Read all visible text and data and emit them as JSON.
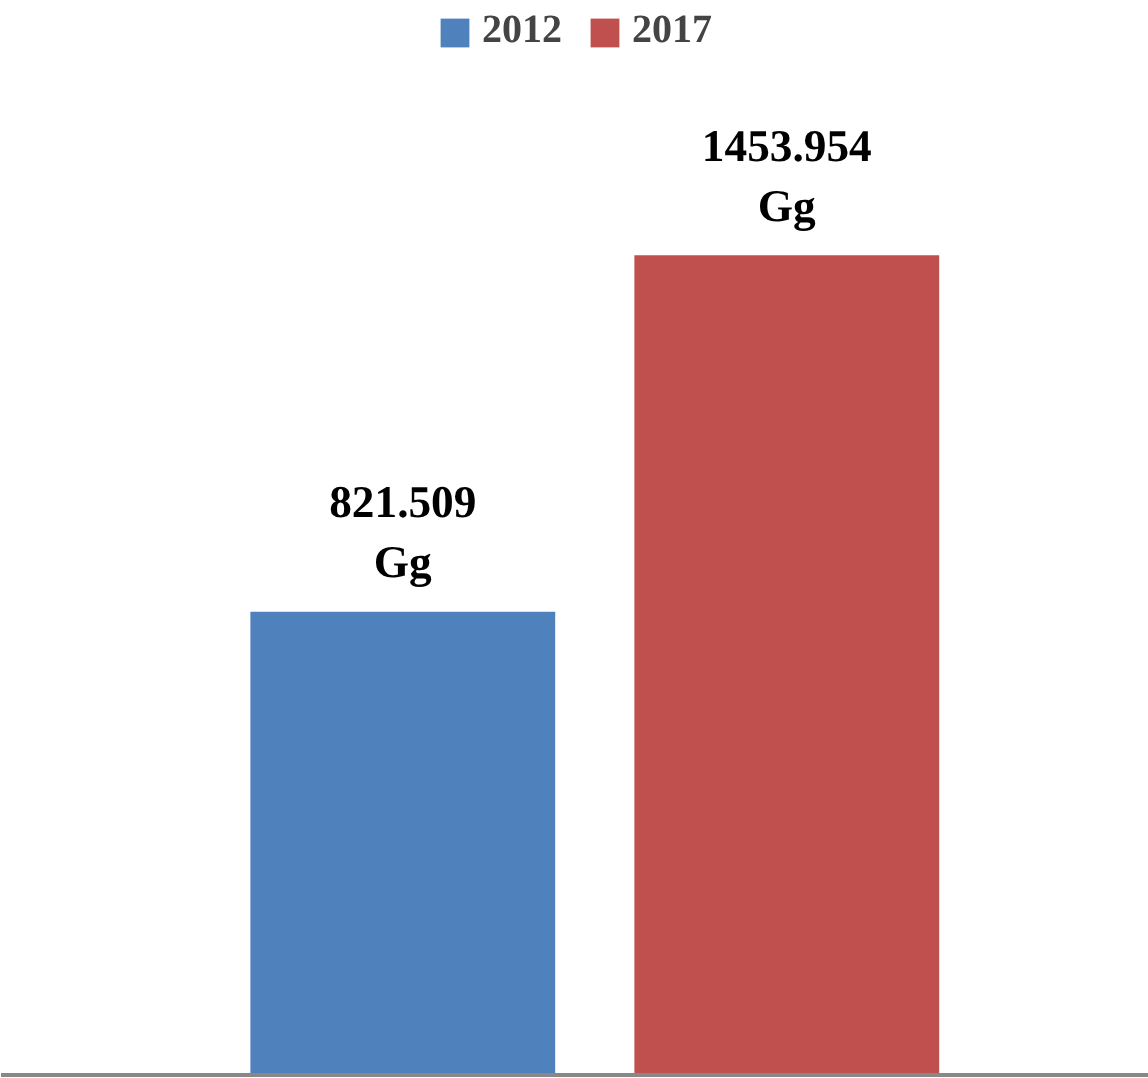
{
  "chart_data": {
    "type": "bar",
    "categories": [
      null
    ],
    "series": [
      {
        "name": "2012",
        "color": "#4f81bd",
        "values": [
          821.509
        ],
        "value_labels": [
          "821.509\nGg"
        ]
      },
      {
        "name": "2017",
        "color": "#c0504d",
        "values": [
          1453.954
        ],
        "value_labels": [
          "1453.954\nGg"
        ]
      }
    ],
    "legend": "top",
    "grid": false
  }
}
